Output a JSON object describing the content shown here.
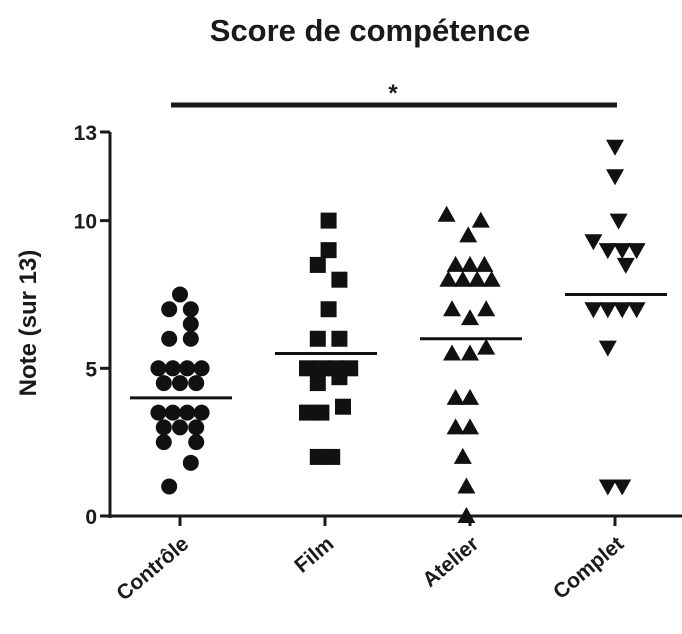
{
  "chart_data": {
    "type": "scatter",
    "title": "Score de compétence",
    "ylabel": "Note (sur 13)",
    "ylim": [
      0,
      13
    ],
    "yticks": [
      0,
      5,
      10,
      13
    ],
    "categories": [
      "Contrôle",
      "Film",
      "Atelier",
      "Complet"
    ],
    "series": [
      {
        "category": "Contrôle",
        "marker": "circle",
        "mean": 4,
        "points": [
          {
            "x": 0,
            "y": 7.5
          },
          {
            "x": -0.3,
            "y": 7
          },
          {
            "x": 0.3,
            "y": 7
          },
          {
            "x": 0.3,
            "y": 6.5
          },
          {
            "x": -0.3,
            "y": 6
          },
          {
            "x": 0.3,
            "y": 6
          },
          {
            "x": -0.6,
            "y": 5
          },
          {
            "x": -0.2,
            "y": 5
          },
          {
            "x": 0.2,
            "y": 5
          },
          {
            "x": 0.6,
            "y": 5
          },
          {
            "x": -0.45,
            "y": 4.5
          },
          {
            "x": 0,
            "y": 4.5
          },
          {
            "x": 0.45,
            "y": 4.5
          },
          {
            "x": -0.6,
            "y": 3.5
          },
          {
            "x": -0.2,
            "y": 3.5
          },
          {
            "x": 0.2,
            "y": 3.5
          },
          {
            "x": 0.6,
            "y": 3.5
          },
          {
            "x": -0.45,
            "y": 3
          },
          {
            "x": 0,
            "y": 3
          },
          {
            "x": 0.45,
            "y": 3
          },
          {
            "x": -0.45,
            "y": 2.5
          },
          {
            "x": 0.45,
            "y": 2.5
          },
          {
            "x": 0.3,
            "y": 1.8
          },
          {
            "x": -0.3,
            "y": 1
          }
        ]
      },
      {
        "category": "Film",
        "marker": "square",
        "mean": 5.5,
        "points": [
          {
            "x": 0.1,
            "y": 10
          },
          {
            "x": 0.1,
            "y": 9
          },
          {
            "x": -0.2,
            "y": 8.5
          },
          {
            "x": 0.4,
            "y": 8
          },
          {
            "x": 0.1,
            "y": 7
          },
          {
            "x": -0.2,
            "y": 6
          },
          {
            "x": 0.4,
            "y": 6
          },
          {
            "x": -0.5,
            "y": 5
          },
          {
            "x": -0.1,
            "y": 5
          },
          {
            "x": 0.3,
            "y": 5
          },
          {
            "x": 0.7,
            "y": 5
          },
          {
            "x": -0.2,
            "y": 4.5
          },
          {
            "x": 0.4,
            "y": 4.7
          },
          {
            "x": -0.5,
            "y": 3.5
          },
          {
            "x": -0.1,
            "y": 3.5
          },
          {
            "x": 0.5,
            "y": 3.7
          },
          {
            "x": -0.2,
            "y": 2
          },
          {
            "x": 0.2,
            "y": 2
          }
        ]
      },
      {
        "category": "Atelier",
        "marker": "triangle-up",
        "mean": 6,
        "points": [
          {
            "x": -0.65,
            "y": 10.2
          },
          {
            "x": 0.3,
            "y": 10
          },
          {
            "x": -0.05,
            "y": 9.5
          },
          {
            "x": -0.4,
            "y": 8.5
          },
          {
            "x": 0,
            "y": 8.5
          },
          {
            "x": 0.4,
            "y": 8.5
          },
          {
            "x": -0.6,
            "y": 8
          },
          {
            "x": -0.2,
            "y": 8
          },
          {
            "x": 0.2,
            "y": 8
          },
          {
            "x": 0.6,
            "y": 8
          },
          {
            "x": -0.5,
            "y": 7
          },
          {
            "x": 0,
            "y": 6.7
          },
          {
            "x": 0.45,
            "y": 7
          },
          {
            "x": -0.5,
            "y": 5.5
          },
          {
            "x": 0,
            "y": 5.5
          },
          {
            "x": 0.45,
            "y": 5.7
          },
          {
            "x": -0.4,
            "y": 4
          },
          {
            "x": 0,
            "y": 4
          },
          {
            "x": -0.4,
            "y": 3
          },
          {
            "x": 0,
            "y": 3
          },
          {
            "x": -0.2,
            "y": 2
          },
          {
            "x": -0.1,
            "y": 1
          },
          {
            "x": -0.1,
            "y": 0
          }
        ]
      },
      {
        "category": "Complet",
        "marker": "triangle-down",
        "mean": 7.5,
        "points": [
          {
            "x": 0,
            "y": 12.5
          },
          {
            "x": 0,
            "y": 11.5
          },
          {
            "x": 0.1,
            "y": 10
          },
          {
            "x": -0.6,
            "y": 9.3
          },
          {
            "x": -0.2,
            "y": 9
          },
          {
            "x": 0.2,
            "y": 9
          },
          {
            "x": 0.6,
            "y": 9
          },
          {
            "x": 0.3,
            "y": 8.5
          },
          {
            "x": -0.6,
            "y": 7
          },
          {
            "x": -0.2,
            "y": 7
          },
          {
            "x": 0.2,
            "y": 7
          },
          {
            "x": 0.6,
            "y": 7
          },
          {
            "x": -0.2,
            "y": 5.7
          },
          {
            "x": -0.2,
            "y": 1
          },
          {
            "x": 0.2,
            "y": 1
          }
        ]
      }
    ],
    "annotation": {
      "label": "*",
      "from": "Contrôle",
      "to": "Complet"
    }
  }
}
